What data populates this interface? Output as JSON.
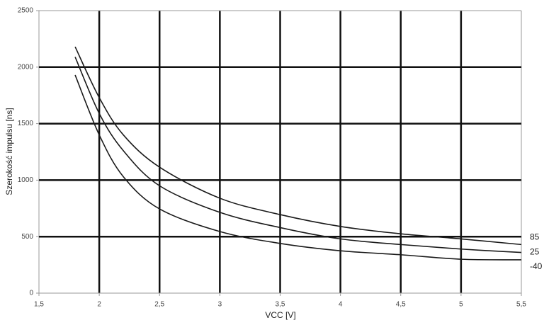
{
  "chart_data": {
    "type": "line",
    "x_label": "VCC [V]",
    "y_label": "Szerokość impulsu [ns]",
    "x": [
      1.8,
      2,
      2.2,
      2.5,
      3,
      3.5,
      4,
      4.5,
      5,
      5.5
    ],
    "series": [
      {
        "name": "85",
        "color": "#1a1a1a",
        "values": [
          2180,
          1730,
          1400,
          1115,
          840,
          695,
          590,
          525,
          480,
          430
        ]
      },
      {
        "name": "25",
        "color": "#1a1a1a",
        "values": [
          2090,
          1590,
          1260,
          950,
          715,
          580,
          480,
          430,
          390,
          360
        ]
      },
      {
        "name": "-40",
        "color": "#1a1a1a",
        "values": [
          1930,
          1400,
          1030,
          745,
          545,
          440,
          375,
          340,
          300,
          295
        ]
      }
    ],
    "xlim": [
      1.5,
      5.5
    ],
    "xticks": [
      {
        "value": 1.5,
        "label": "1,5"
      },
      2,
      {
        "value": 2.5,
        "label": "2,5"
      },
      3,
      {
        "value": 3.5,
        "label": "3,5"
      },
      4,
      {
        "value": 4.5,
        "label": "4,5"
      },
      5,
      {
        "value": 5.5,
        "label": "5,5"
      }
    ],
    "ylim": [
      0,
      2500
    ],
    "yticks": [
      0,
      500,
      1000,
      1500,
      2000,
      2500
    ],
    "grid": true
  }
}
